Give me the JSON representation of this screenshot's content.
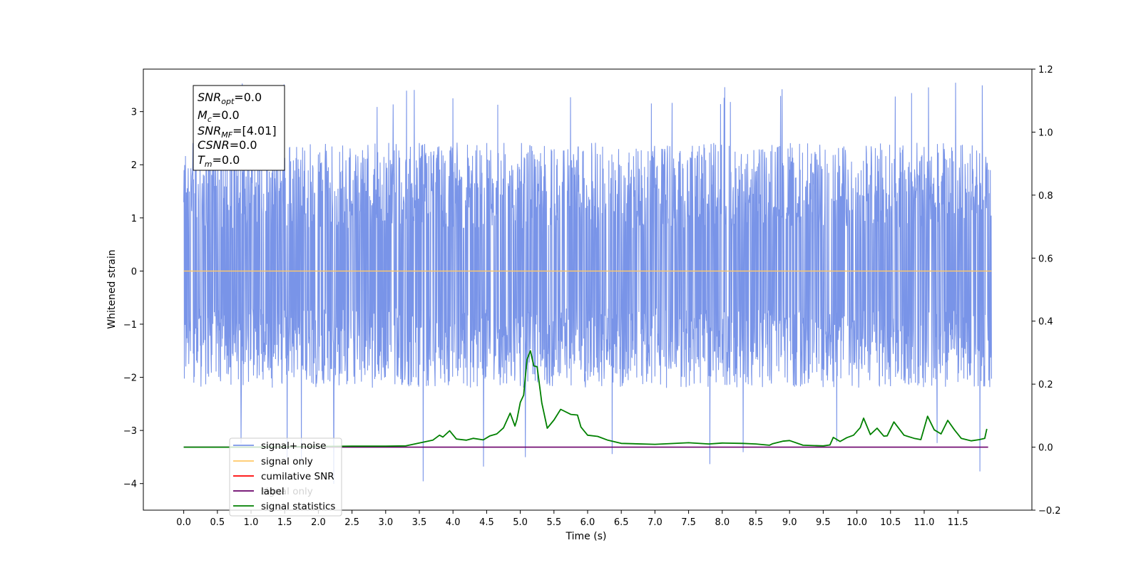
{
  "chart_data": {
    "type": "line",
    "xlabel": "Time (s)",
    "ylabel": "Whitened strain",
    "xlim": [
      -0.6,
      12.6
    ],
    "ylim": [
      -4.5,
      3.8
    ],
    "y2lim": [
      -0.2,
      1.2
    ],
    "x_ticks": [
      "0.0",
      "0.5",
      "1.0",
      "1.5",
      "2.0",
      "2.5",
      "3.0",
      "3.5",
      "4.0",
      "4.5",
      "5.0",
      "5.5",
      "6.0",
      "6.5",
      "7.0",
      "7.5",
      "8.0",
      "8.5",
      "9.0",
      "9.5",
      "10.0",
      "10.5",
      "11.0",
      "11.5"
    ],
    "y_ticks": [
      "3",
      "2",
      "1",
      "0",
      "−1",
      "−2",
      "−3",
      "−4"
    ],
    "y2_ticks": [
      "1.2",
      "1.0",
      "0.8",
      "0.6",
      "0.4",
      "0.2",
      "0.0",
      "−0.2"
    ],
    "noise_range": [
      0.0,
      12.0
    ],
    "noise_envelope": {
      "typical_max": 2.3,
      "typical_min": -2.0,
      "peak_max": 3.55,
      "peak_min": -4.1
    },
    "series": [
      {
        "name": "signal+ noise",
        "color": "#7994e8"
      },
      {
        "name": "signal only",
        "color": "#ffc866",
        "value": 0.0
      },
      {
        "name": "cumilative SNR",
        "color": "#ff0000"
      },
      {
        "name": "label",
        "color": "#6a006a",
        "value": 0.0,
        "x_end": 11.95
      },
      {
        "name": "signal statistics",
        "color": "#008000",
        "axis": "right",
        "x": [
          0.0,
          1.0,
          2.0,
          2.5,
          3.0,
          3.3,
          3.5,
          3.7,
          3.8,
          3.85,
          3.95,
          4.05,
          4.2,
          4.3,
          4.45,
          4.55,
          4.65,
          4.75,
          4.85,
          4.92,
          4.95,
          5.0,
          5.05,
          5.1,
          5.15,
          5.2,
          5.25,
          5.32,
          5.4,
          5.5,
          5.6,
          5.75,
          5.85,
          5.9,
          6.0,
          6.15,
          6.3,
          6.5,
          7.0,
          7.5,
          7.8,
          8.0,
          8.3,
          8.5,
          8.7,
          8.75,
          8.9,
          9.0,
          9.2,
          9.5,
          9.6,
          9.65,
          9.75,
          9.85,
          9.95,
          10.05,
          10.1,
          10.2,
          10.3,
          10.4,
          10.45,
          10.55,
          10.7,
          10.85,
          10.95,
          11.05,
          11.15,
          11.25,
          11.35,
          11.45,
          11.55,
          11.7,
          11.82,
          11.9,
          11.93
        ],
        "values": [
          0.0,
          0.0,
          0.002,
          0.003,
          0.003,
          0.004,
          0.013,
          0.022,
          0.038,
          0.032,
          0.052,
          0.026,
          0.022,
          0.028,
          0.023,
          0.036,
          0.042,
          0.061,
          0.108,
          0.067,
          0.088,
          0.142,
          0.165,
          0.278,
          0.306,
          0.258,
          0.255,
          0.14,
          0.06,
          0.086,
          0.12,
          0.104,
          0.102,
          0.064,
          0.038,
          0.034,
          0.022,
          0.012,
          0.009,
          0.014,
          0.01,
          0.013,
          0.012,
          0.01,
          0.006,
          0.011,
          0.019,
          0.021,
          0.006,
          0.004,
          0.007,
          0.031,
          0.018,
          0.03,
          0.038,
          0.062,
          0.092,
          0.04,
          0.06,
          0.035,
          0.036,
          0.08,
          0.038,
          0.028,
          0.024,
          0.098,
          0.055,
          0.042,
          0.085,
          0.055,
          0.028,
          0.02,
          0.024,
          0.028,
          0.058
        ]
      }
    ],
    "legend": {
      "placement": "lower-left",
      "entries": [
        "signal+ noise",
        "signal only",
        "cumilative SNR",
        "label",
        "signal statistics"
      ],
      "hidden_text": [
        "signal only"
      ]
    },
    "info_box": {
      "snr_opt": {
        "base": "SNR",
        "sub": "opt",
        "value": "=0.0"
      },
      "mc": {
        "base": "M",
        "sub": "c",
        "value": "=0.0"
      },
      "snr_mf": {
        "base": "SNR",
        "sub": "MF",
        "value": "=[4.01]"
      },
      "csnr": {
        "base": "CSNR",
        "value": "=0.0"
      },
      "tm": {
        "base": "T",
        "sub": "m",
        "value": "=0.0"
      }
    }
  }
}
